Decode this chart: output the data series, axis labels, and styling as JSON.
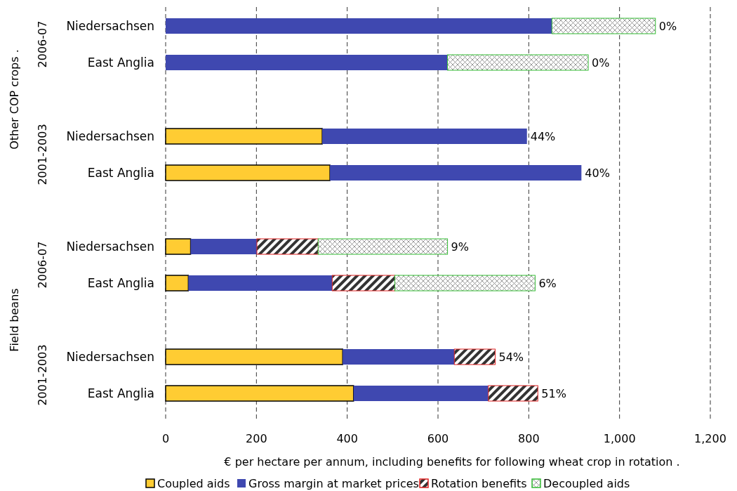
{
  "chart_data": {
    "type": "bar",
    "orientation": "horizontal",
    "stacked": true,
    "categories": [
      "Niedersachsen",
      "East Anglia",
      "Niedersachsen",
      "East Anglia",
      "Niedersachsen",
      "East Anglia",
      "Niedersachsen",
      "East Anglia"
    ],
    "series": [
      {
        "name": "Coupled aids",
        "color": "#ffcc33",
        "values": [
          0,
          0,
          345,
          362,
          55,
          50,
          390,
          414
        ]
      },
      {
        "name": "Gross margin at market prices",
        "color": "#3f48b0",
        "values": [
          851,
          621,
          451,
          554,
          146,
          317,
          246,
          297
        ]
      },
      {
        "name": "Rotation benefits",
        "color": "#e02020",
        "values": [
          0,
          0,
          0,
          0,
          135,
          138,
          90,
          109
        ]
      },
      {
        "name": "Decoupled aids",
        "color": "#33bb33",
        "values": [
          228,
          310,
          0,
          0,
          285,
          309,
          0,
          0
        ]
      }
    ],
    "xlabel": "€ per hectare per annum, including benefits for following wheat crop in rotation  .",
    "xlim": [
      0,
      1200
    ],
    "xticks": [
      0,
      200,
      400,
      600,
      800,
      {
        "value": 1000,
        "label": "1,000"
      },
      {
        "value": 1200,
        "label": "1,200"
      }
    ],
    "grid": "x",
    "legend": "bottom",
    "annotations": [
      "0%",
      "0%",
      "44%",
      "40%",
      "9%",
      "6%",
      "54%",
      "51%",
      "2006-07",
      "2001-2003",
      "2006-07",
      "2001-2003",
      "Other COP crops  .",
      "Field beans"
    ]
  }
}
